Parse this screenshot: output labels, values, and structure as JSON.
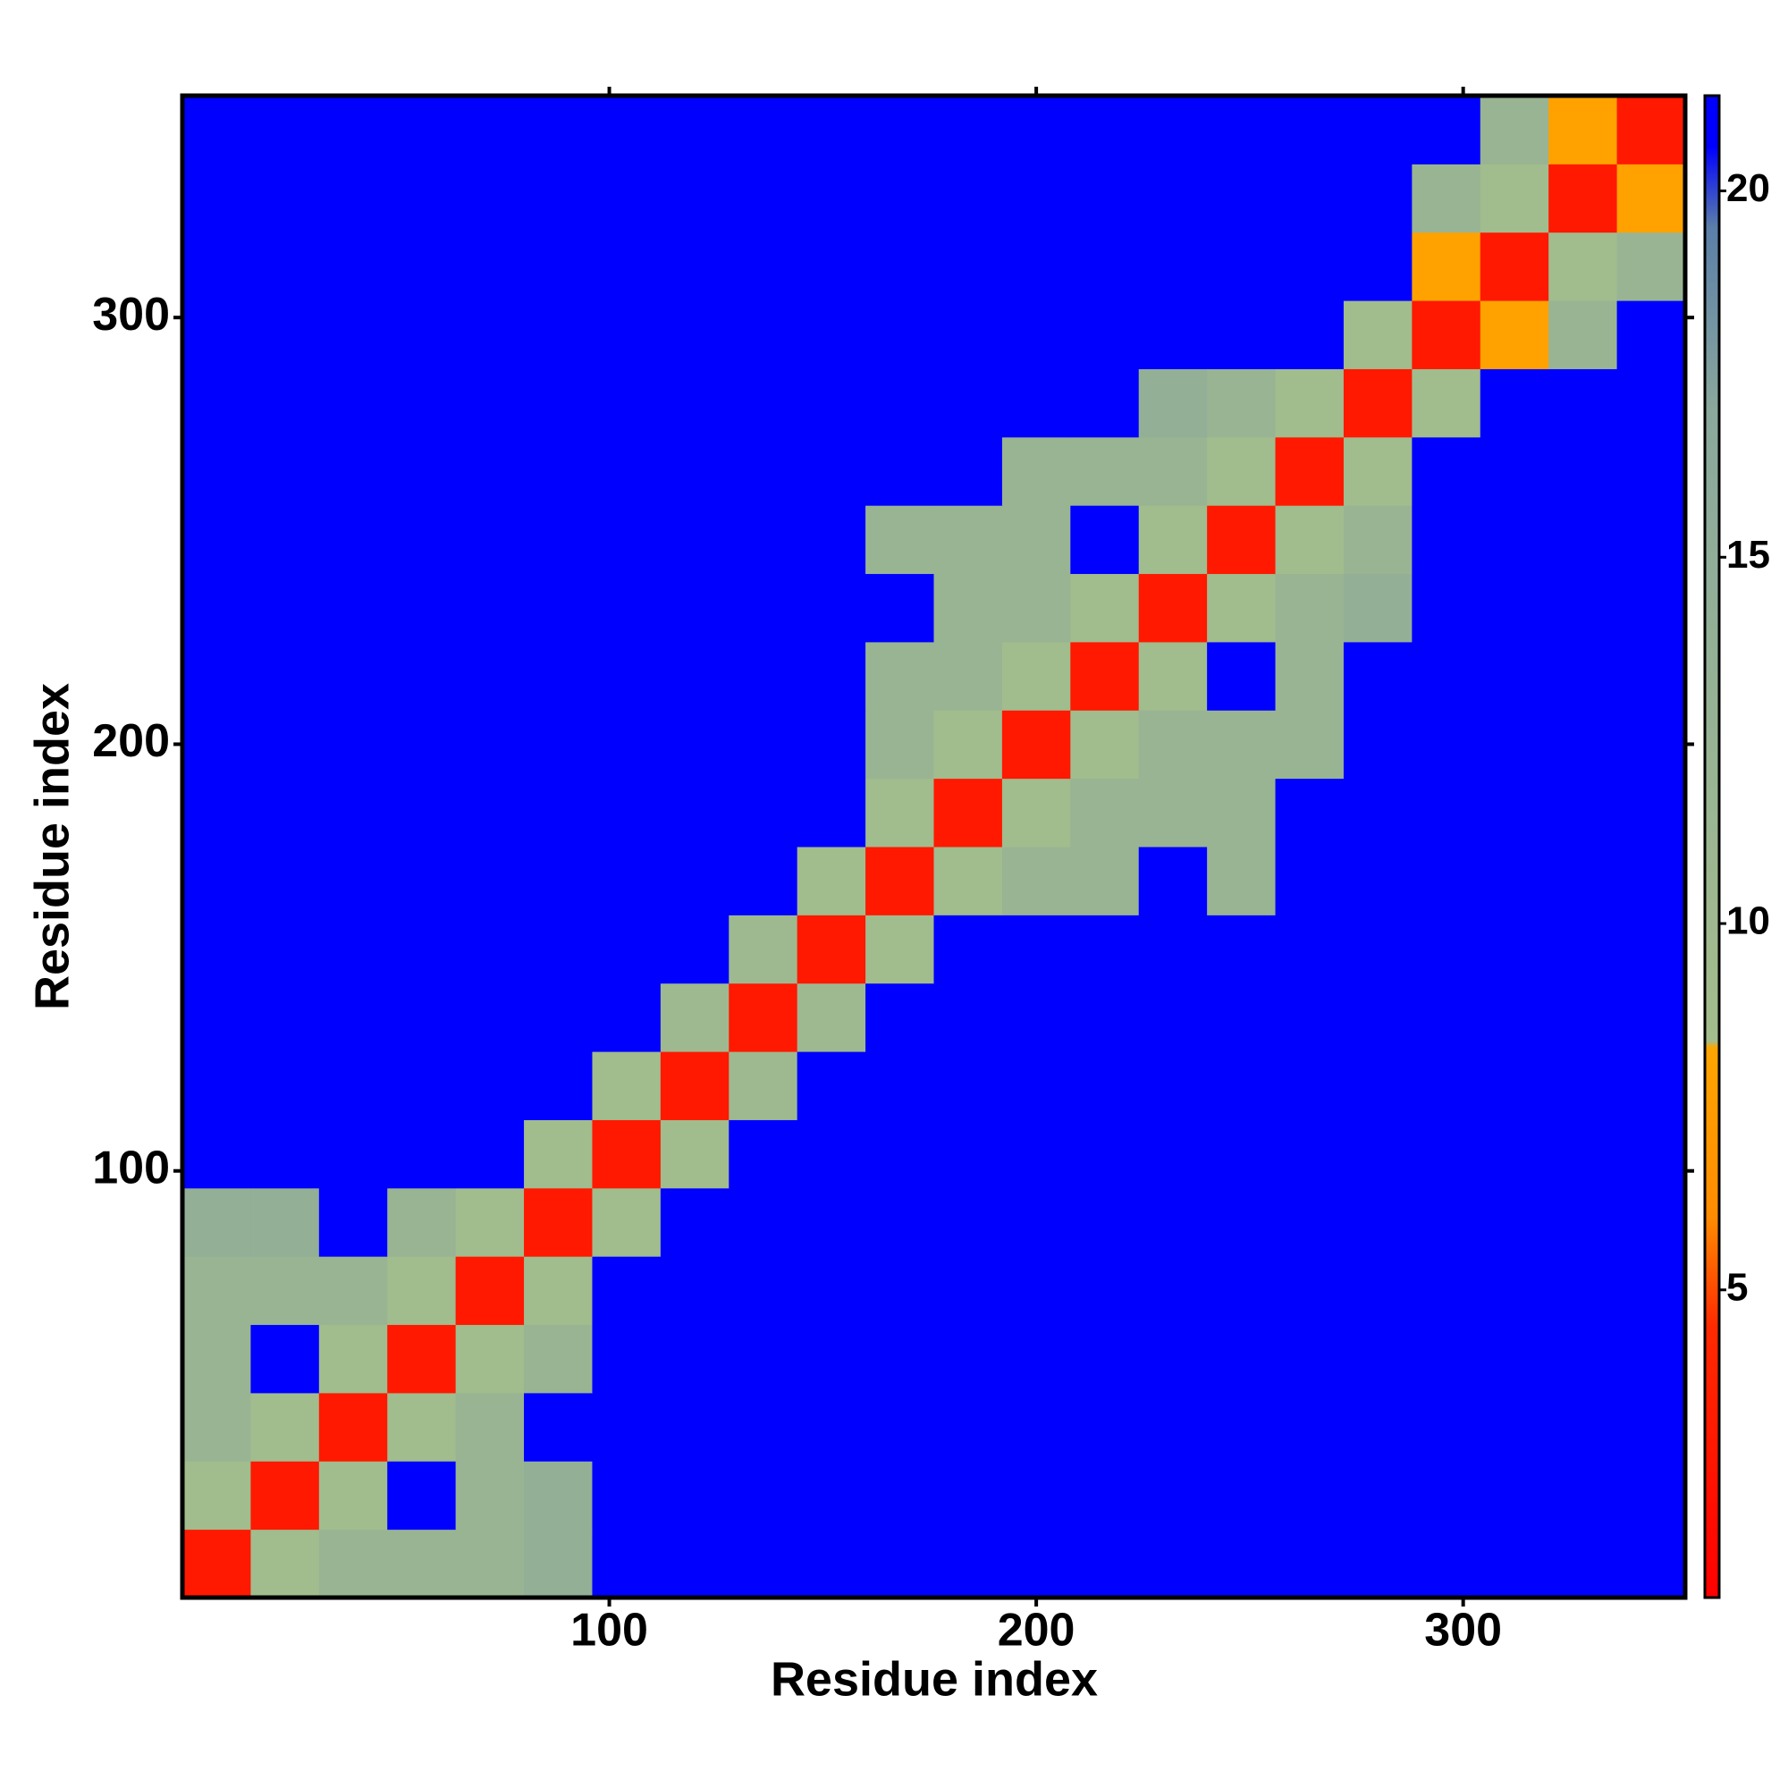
{
  "chart_data": {
    "type": "heatmap",
    "x_label": "Residue index",
    "y_label": "Residue index",
    "bins": [
      0,
      16,
      32,
      48,
      64,
      80,
      96,
      112,
      128,
      144,
      160,
      176,
      192,
      208,
      224,
      240,
      256,
      272,
      288,
      304,
      320,
      336,
      352
    ],
    "z": [
      [
        3,
        9,
        12,
        12,
        12,
        14,
        21,
        21,
        21,
        21,
        21,
        21,
        21,
        21,
        21,
        21,
        21,
        21,
        21,
        21,
        21,
        21
      ],
      [
        9,
        3,
        9,
        21,
        12,
        14,
        21,
        21,
        21,
        21,
        21,
        21,
        21,
        21,
        21,
        21,
        21,
        21,
        21,
        21,
        21,
        21
      ],
      [
        12,
        9,
        3,
        9,
        12,
        21,
        21,
        21,
        21,
        21,
        21,
        21,
        21,
        21,
        21,
        21,
        21,
        21,
        21,
        21,
        21,
        21
      ],
      [
        12,
        21,
        9,
        3,
        9,
        12,
        21,
        21,
        21,
        21,
        21,
        21,
        21,
        21,
        21,
        21,
        21,
        21,
        21,
        21,
        21,
        21
      ],
      [
        12,
        12,
        12,
        9,
        3,
        9,
        21,
        21,
        21,
        21,
        21,
        21,
        21,
        21,
        21,
        21,
        21,
        21,
        21,
        21,
        21,
        21
      ],
      [
        14,
        14,
        21,
        12,
        9,
        3,
        9,
        21,
        21,
        21,
        21,
        21,
        21,
        21,
        21,
        21,
        21,
        21,
        21,
        21,
        21,
        21
      ],
      [
        21,
        21,
        21,
        21,
        21,
        9,
        3,
        9,
        21,
        21,
        21,
        21,
        21,
        21,
        21,
        21,
        21,
        21,
        21,
        21,
        21,
        21
      ],
      [
        21,
        21,
        21,
        21,
        21,
        21,
        9,
        3,
        10,
        21,
        21,
        21,
        21,
        21,
        21,
        21,
        21,
        21,
        21,
        21,
        21,
        21
      ],
      [
        21,
        21,
        21,
        21,
        21,
        21,
        21,
        10,
        3,
        10,
        21,
        21,
        21,
        21,
        21,
        21,
        21,
        21,
        21,
        21,
        21,
        21
      ],
      [
        21,
        21,
        21,
        21,
        21,
        21,
        21,
        21,
        10,
        3,
        9,
        21,
        21,
        21,
        21,
        21,
        21,
        21,
        21,
        21,
        21,
        21
      ],
      [
        21,
        21,
        21,
        21,
        21,
        21,
        21,
        21,
        21,
        9,
        3,
        9,
        12,
        12,
        21,
        12,
        21,
        21,
        21,
        21,
        21,
        21
      ],
      [
        21,
        21,
        21,
        21,
        21,
        21,
        21,
        21,
        21,
        21,
        9,
        3,
        9,
        12,
        12,
        12,
        21,
        21,
        21,
        21,
        21,
        21
      ],
      [
        21,
        21,
        21,
        21,
        21,
        21,
        21,
        21,
        21,
        21,
        12,
        9,
        3,
        9,
        12,
        12,
        12,
        21,
        21,
        21,
        21,
        21
      ],
      [
        21,
        21,
        21,
        21,
        21,
        21,
        21,
        21,
        21,
        21,
        12,
        12,
        9,
        3,
        9,
        21,
        12,
        21,
        21,
        21,
        21,
        21
      ],
      [
        21,
        21,
        21,
        21,
        21,
        21,
        21,
        21,
        21,
        21,
        21,
        12,
        12,
        9,
        3,
        9,
        12,
        14,
        21,
        21,
        21,
        21
      ],
      [
        21,
        21,
        21,
        21,
        21,
        21,
        21,
        21,
        21,
        21,
        12,
        12,
        12,
        21,
        9,
        3,
        9,
        12,
        21,
        21,
        21,
        21
      ],
      [
        21,
        21,
        21,
        21,
        21,
        21,
        21,
        21,
        21,
        21,
        21,
        21,
        12,
        12,
        12,
        9,
        3,
        9,
        21,
        21,
        21,
        21
      ],
      [
        21,
        21,
        21,
        21,
        21,
        21,
        21,
        21,
        21,
        21,
        21,
        21,
        21,
        21,
        14,
        12,
        9,
        3,
        9,
        21,
        21,
        21
      ],
      [
        21,
        21,
        21,
        21,
        21,
        21,
        21,
        21,
        21,
        21,
        21,
        21,
        21,
        21,
        21,
        21,
        21,
        9,
        3,
        8,
        12,
        21
      ],
      [
        21,
        21,
        21,
        21,
        21,
        21,
        21,
        21,
        21,
        21,
        21,
        21,
        21,
        21,
        21,
        21,
        21,
        21,
        8,
        3,
        9,
        12
      ],
      [
        21,
        21,
        21,
        21,
        21,
        21,
        21,
        21,
        21,
        21,
        21,
        21,
        21,
        21,
        21,
        21,
        21,
        21,
        12,
        9,
        3,
        8
      ],
      [
        21,
        21,
        21,
        21,
        21,
        21,
        21,
        21,
        21,
        21,
        21,
        21,
        21,
        21,
        21,
        21,
        21,
        21,
        21,
        12,
        8,
        3
      ]
    ],
    "xlim": [
      0,
      352
    ],
    "ylim": [
      0,
      352
    ],
    "xticks": [
      100,
      200,
      300
    ],
    "yticks": [
      100,
      200,
      300
    ],
    "colorbar": {
      "lim": [
        0.8,
        21.3
      ],
      "ticks": [
        5,
        10,
        15,
        20
      ]
    },
    "colorscale": [
      [
        0.8,
        "#ff0000"
      ],
      [
        4.5,
        "#ff2a00"
      ],
      [
        6,
        "#ff8c00"
      ],
      [
        8.3,
        "#ffa500"
      ],
      [
        8.4,
        "#a3bd8c"
      ],
      [
        17,
        "#8aa89c"
      ],
      [
        19.5,
        "#5b7fa8"
      ],
      [
        20.6,
        "#0000ff"
      ],
      [
        21.3,
        "#0000ff"
      ]
    ]
  }
}
